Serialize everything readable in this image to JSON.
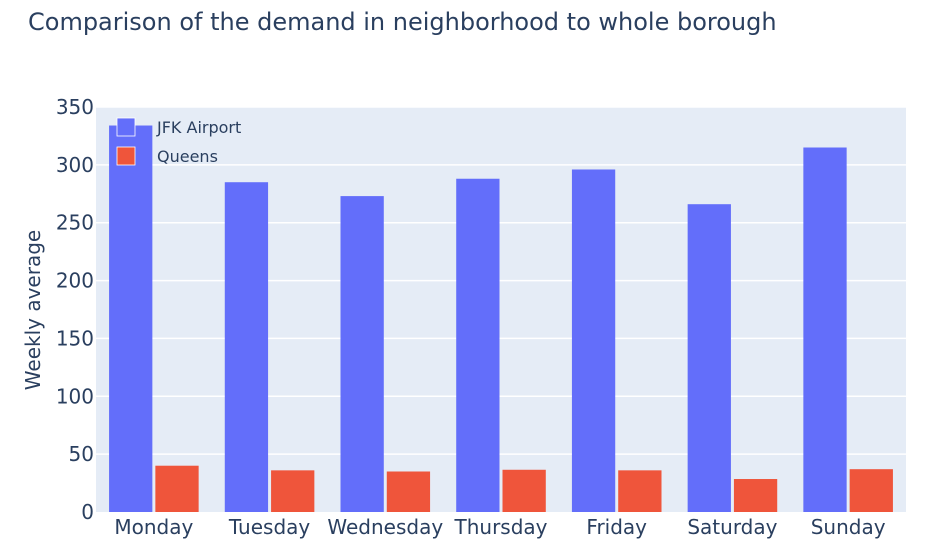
{
  "chart_data": {
    "type": "bar",
    "title": "Comparison of the demand in neighborhood to whole borough",
    "xlabel": "",
    "ylabel": "Weekly average",
    "ylim": [
      0,
      350
    ],
    "yticks": [
      0,
      50,
      100,
      150,
      200,
      250,
      300,
      350
    ],
    "grid": true,
    "legend_position": "top-left",
    "categories": [
      "Monday",
      "Tuesday",
      "Wednesday",
      "Thursday",
      "Friday",
      "Saturday",
      "Sunday"
    ],
    "series": [
      {
        "name": "JFK Airport",
        "color": "#636efa",
        "values": [
          334,
          285,
          273,
          288,
          296,
          266,
          315
        ]
      },
      {
        "name": "Queens",
        "color": "#ef553b",
        "values": [
          40,
          36,
          35,
          36.5,
          36,
          28.5,
          37
        ]
      }
    ]
  }
}
